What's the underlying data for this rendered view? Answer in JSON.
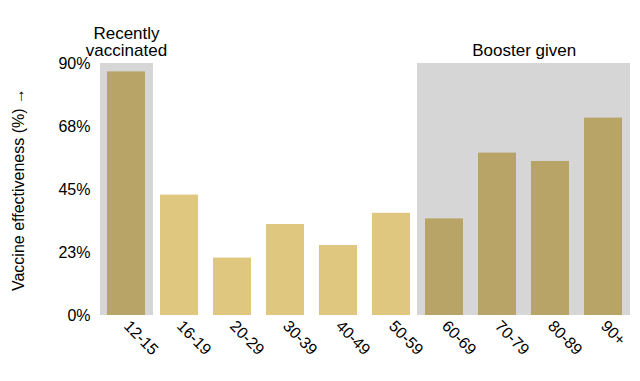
{
  "chart_data": {
    "type": "bar",
    "y_label": "Vaccine effectiveness (%)",
    "categories": [
      "12-15",
      "16-19",
      "20-29",
      "30-39",
      "40-49",
      "50-59",
      "60-69",
      "70-79",
      "80-89",
      "90+"
    ],
    "values": [
      87,
      43,
      20.5,
      32.5,
      25,
      36.5,
      34.5,
      58,
      55,
      70.5
    ],
    "colors": [
      "#b8a466",
      "#dfc77f",
      "#dfc77f",
      "#dfc77f",
      "#dfc77f",
      "#dfc77f",
      "#b8a466",
      "#b8a466",
      "#b8a466",
      "#b8a466"
    ],
    "ylim": [
      0,
      90
    ],
    "yticks": [
      {
        "value": 0,
        "label": "0%"
      },
      {
        "value": 22.5,
        "label": "23%"
      },
      {
        "value": 45,
        "label": "45%"
      },
      {
        "value": 67.5,
        "label": "68%"
      },
      {
        "value": 90,
        "label": "90%"
      }
    ],
    "grid": false,
    "annotations": [
      {
        "text": "Recently\nvaccinated",
        "from": "12-15",
        "to": "12-15"
      },
      {
        "text": "Booster given",
        "from": "60-69",
        "to": "90+"
      }
    ]
  }
}
